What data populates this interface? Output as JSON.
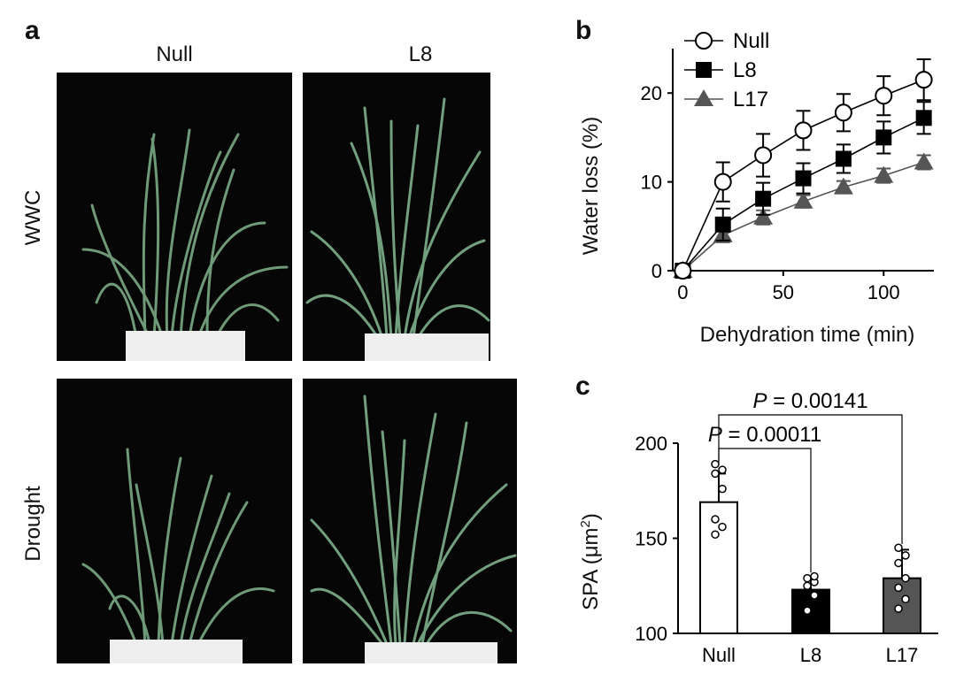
{
  "panels": {
    "a": {
      "letter": "a",
      "columns": [
        "Null",
        "L8"
      ],
      "rows": [
        "WWC",
        "Drought"
      ]
    },
    "b": {
      "letter": "b"
    },
    "c": {
      "letter": "c"
    }
  },
  "chart_data": [
    {
      "type": "line",
      "panel": "b",
      "xlabel": "Dehydration time (min)",
      "ylabel": "Water loss (%)",
      "xlim": [
        -5,
        125
      ],
      "ylim": [
        0,
        25
      ],
      "xticks": [
        0,
        50,
        100
      ],
      "yticks": [
        0,
        10,
        20
      ],
      "x": [
        0,
        20,
        40,
        60,
        80,
        100,
        120
      ],
      "legend_position": "top-left",
      "series": [
        {
          "name": "Null",
          "marker": "open-circle",
          "color": "#000000",
          "values": [
            0,
            10,
            13,
            15.8,
            17.8,
            19.7,
            21.5
          ],
          "error": [
            0,
            2.2,
            2.4,
            2.2,
            2.1,
            2.2,
            2.3
          ]
        },
        {
          "name": "L8",
          "marker": "filled-square",
          "color": "#000000",
          "values": [
            0,
            5.2,
            8.1,
            10.4,
            12.6,
            15.0,
            17.2
          ],
          "error": [
            0,
            1.8,
            1.8,
            1.7,
            1.6,
            1.8,
            1.8
          ]
        },
        {
          "name": "L17",
          "marker": "filled-triangle",
          "color": "#555555",
          "values": [
            0,
            4.0,
            6.0,
            7.8,
            9.4,
            10.7,
            12.2
          ],
          "error": [
            0,
            0.8,
            0.8,
            0.7,
            0.7,
            0.8,
            0.8
          ]
        }
      ]
    },
    {
      "type": "bar",
      "panel": "c",
      "ylabel_main": "SPA (",
      "ylabel_unit": "μm",
      "ylabel_sup": "2",
      "ylabel_close": ")",
      "ylim": [
        100,
        200
      ],
      "yticks": [
        100,
        150,
        200
      ],
      "categories": [
        "Null",
        "L8",
        "L17"
      ],
      "values": [
        169,
        123,
        129
      ],
      "errors": [
        15,
        7,
        15
      ],
      "fills": [
        "#ffffff",
        "#000000",
        "#555555"
      ],
      "points": [
        [
          152,
          156,
          160,
          176,
          184,
          186,
          189
        ],
        [
          112,
          120,
          125,
          127,
          129,
          130
        ],
        [
          113,
          118,
          124,
          129,
          137,
          141,
          145
        ]
      ],
      "comparisons": [
        {
          "from": "Null",
          "to": "L8",
          "label_italic": "P",
          "label_rest": " = 0.00011"
        },
        {
          "from": "Null",
          "to": "L17",
          "label_italic": "P",
          "label_rest": " = 0.00141"
        }
      ]
    }
  ]
}
